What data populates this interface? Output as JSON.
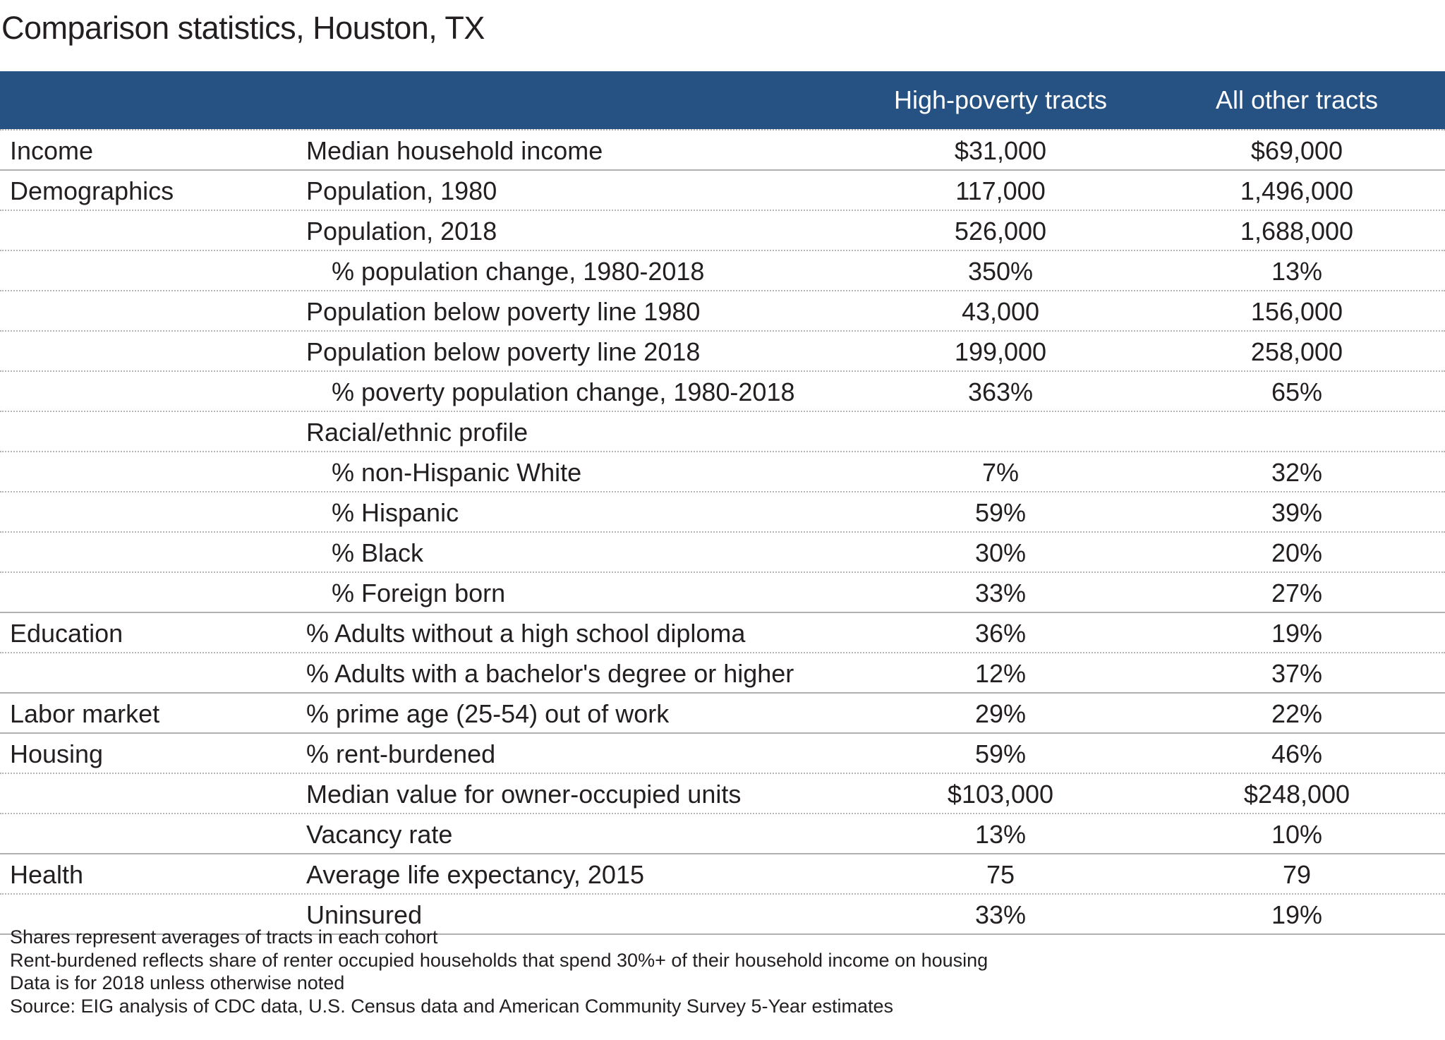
{
  "title": "Comparison statistics, Houston, TX",
  "columns": [
    "",
    "",
    "High-poverty tracts",
    "All other tracts"
  ],
  "rows": [
    {
      "category": "Income",
      "metric": "Median household income",
      "indent": false,
      "high": "$31,000",
      "other": "$69,000",
      "group_start": true
    },
    {
      "category": "Demographics",
      "metric": "Population, 1980",
      "indent": false,
      "high": "117,000",
      "other": "1,496,000",
      "group_start": true
    },
    {
      "category": "",
      "metric": "Population, 2018",
      "indent": false,
      "high": "526,000",
      "other": "1,688,000"
    },
    {
      "category": "",
      "metric": "% population change, 1980-2018",
      "indent": true,
      "high": "350%",
      "other": "13%"
    },
    {
      "category": "",
      "metric": "Population below poverty line 1980",
      "indent": false,
      "high": "43,000",
      "other": "156,000"
    },
    {
      "category": "",
      "metric": "Population below poverty line 2018",
      "indent": false,
      "high": "199,000",
      "other": "258,000"
    },
    {
      "category": "",
      "metric": "% poverty population change, 1980-2018",
      "indent": true,
      "high": "363%",
      "other": "65%"
    },
    {
      "category": "",
      "metric": "Racial/ethnic profile",
      "indent": false,
      "high": "",
      "other": ""
    },
    {
      "category": "",
      "metric": "% non-Hispanic White",
      "indent": true,
      "high": "7%",
      "other": "32%"
    },
    {
      "category": "",
      "metric": "% Hispanic",
      "indent": true,
      "high": "59%",
      "other": "39%"
    },
    {
      "category": "",
      "metric": "% Black",
      "indent": true,
      "high": "30%",
      "other": "20%"
    },
    {
      "category": "",
      "metric": "% Foreign born",
      "indent": true,
      "high": "33%",
      "other": "27%"
    },
    {
      "category": "Education",
      "metric": "% Adults without a high school diploma",
      "indent": false,
      "high": "36%",
      "other": "19%",
      "group_start": true
    },
    {
      "category": "",
      "metric": "% Adults with a bachelor's degree or higher",
      "indent": false,
      "high": "12%",
      "other": "37%"
    },
    {
      "category": "Labor market",
      "metric": "% prime age (25-54) out of work",
      "indent": false,
      "high": "29%",
      "other": "22%",
      "group_start": true
    },
    {
      "category": "Housing",
      "metric": "% rent-burdened",
      "indent": false,
      "high": "59%",
      "other": "46%",
      "group_start": true
    },
    {
      "category": "",
      "metric": "Median value for owner-occupied units",
      "indent": false,
      "high": "$103,000",
      "other": "$248,000"
    },
    {
      "category": "",
      "metric": "Vacancy rate",
      "indent": false,
      "high": "13%",
      "other": "10%"
    },
    {
      "category": "Health",
      "metric": "Average life expectancy, 2015",
      "indent": false,
      "high": "75",
      "other": "79",
      "group_start": true
    },
    {
      "category": "",
      "metric": "Uninsured",
      "indent": false,
      "high": "33%",
      "other": "19%"
    }
  ],
  "notes": [
    "Shares represent averages of tracts in each cohort",
    "Rent-burdened reflects share of renter occupied households that spend 30%+ of their household income on housing",
    "Data is for 2018 unless otherwise noted",
    "Source: EIG analysis of CDC data, U.S. Census data and American Community Survey 5-Year estimates"
  ],
  "colors": {
    "header_bg": "#255183",
    "header_text": "#ffffff"
  }
}
